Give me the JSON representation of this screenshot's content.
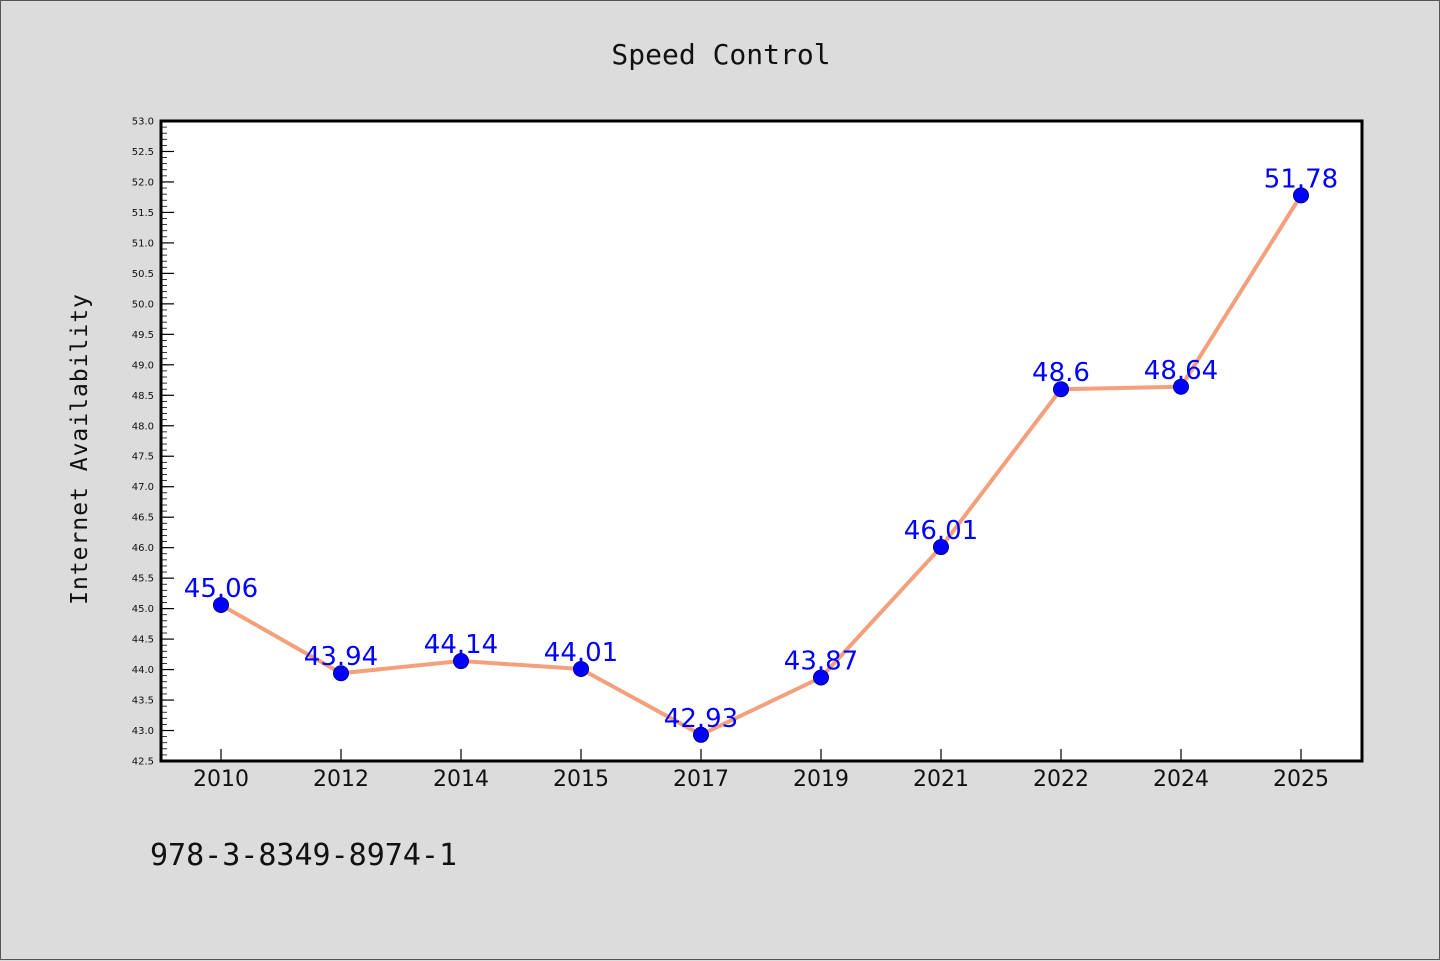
{
  "chart_data": {
    "type": "line",
    "title": "Speed Control",
    "xlabel": "",
    "ylabel": "Internet Availability",
    "categories": [
      "2010",
      "2012",
      "2014",
      "2015",
      "2017",
      "2019",
      "2021",
      "2022",
      "2024",
      "2025"
    ],
    "series": [
      {
        "values": [
          45.06,
          43.94,
          44.14,
          44.01,
          42.93,
          43.87,
          46.01,
          48.6,
          48.64,
          51.78
        ],
        "data_labels": [
          "45.06",
          "43.94",
          "44.14",
          "44.01",
          "42.93",
          "43.87",
          "46.01",
          "48.6",
          "48.64",
          "51.78"
        ],
        "line_color": "#f4a07c",
        "marker_color": "#0000ff"
      }
    ],
    "ylim": [
      42.5,
      53.0
    ],
    "yticks": [
      "42.5",
      "43.0",
      "43.5",
      "44.0",
      "44.5",
      "45.0",
      "45.5",
      "46.0",
      "46.5",
      "47.0",
      "47.5",
      "48.0",
      "48.5",
      "49.0",
      "49.5",
      "50.0",
      "50.5",
      "51.0",
      "51.5",
      "52.0",
      "52.5",
      "53.0"
    ],
    "grid": false,
    "legend": "none"
  },
  "footnote": "978-3-8349-8974-1",
  "colors": {
    "background": "#dcdcdc",
    "plot_background": "#ffffff",
    "line": "#f4a07c",
    "marker": "#0000ff",
    "data_label": "#0000ff"
  }
}
